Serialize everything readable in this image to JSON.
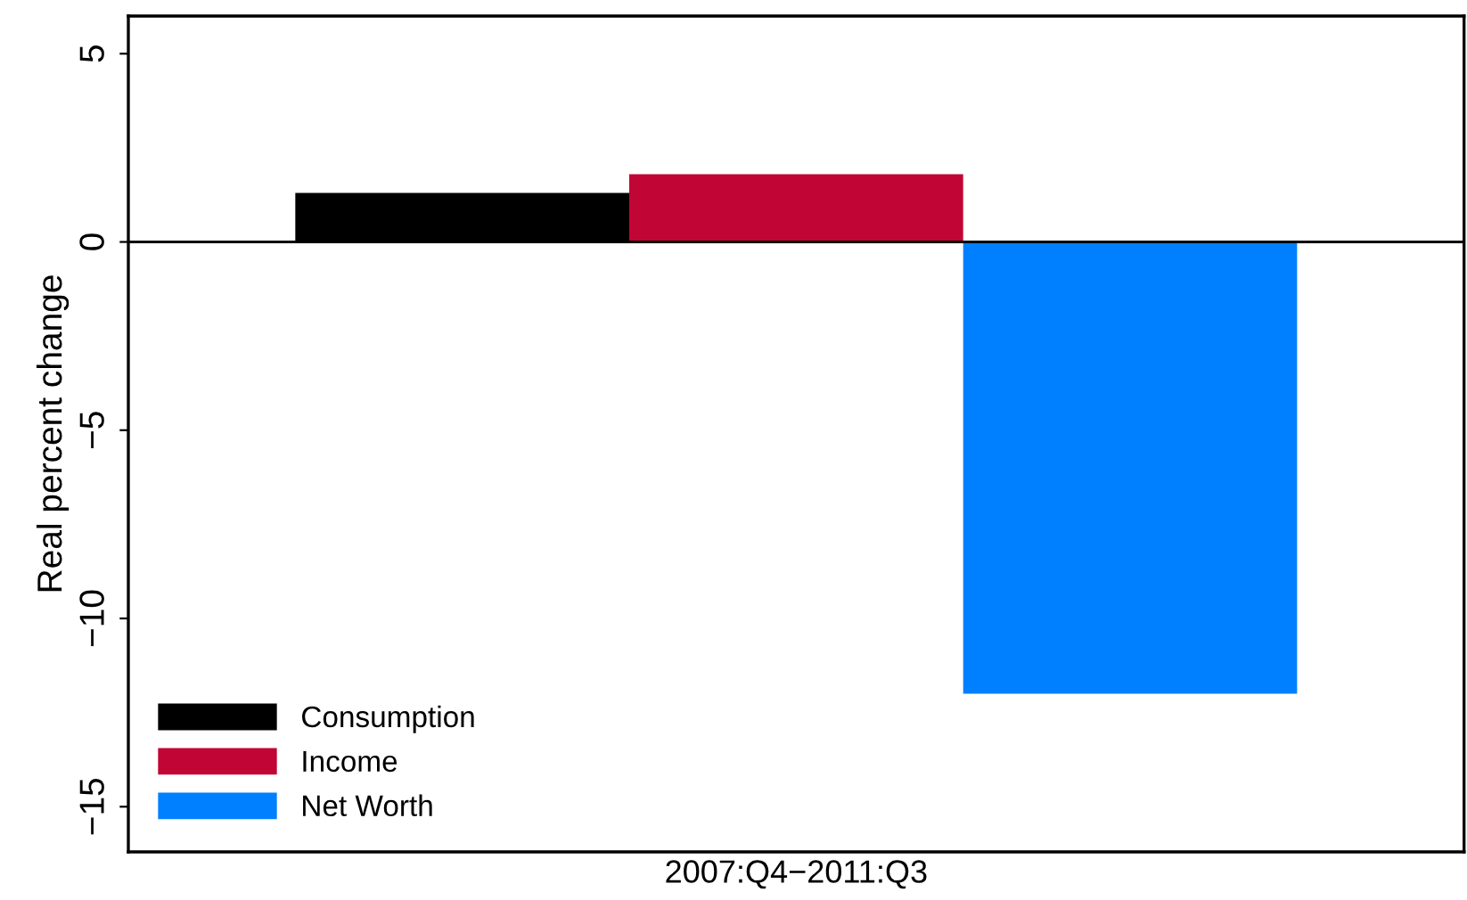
{
  "chart_data": {
    "type": "bar",
    "ylabel": "Real percent change",
    "categories": [
      "2007:Q4−2011:Q3"
    ],
    "series": [
      {
        "name": "Consumption",
        "color": "#000000",
        "values": [
          1.3
        ]
      },
      {
        "name": "Income",
        "color": "#c10534",
        "values": [
          1.8
        ]
      },
      {
        "name": "Net Worth",
        "color": "#0080ff",
        "values": [
          -12.0
        ]
      }
    ],
    "ylim": [
      -16.2,
      6
    ],
    "yticks": [
      {
        "value": -15,
        "label": "−15"
      },
      {
        "value": -10,
        "label": "−10"
      },
      {
        "value": -5,
        "label": "−5"
      },
      0,
      5
    ],
    "ref_lines": [
      {
        "axis": "y",
        "value": 0,
        "color": "#000000"
      }
    ],
    "legend": "bottom left",
    "grid": false
  }
}
